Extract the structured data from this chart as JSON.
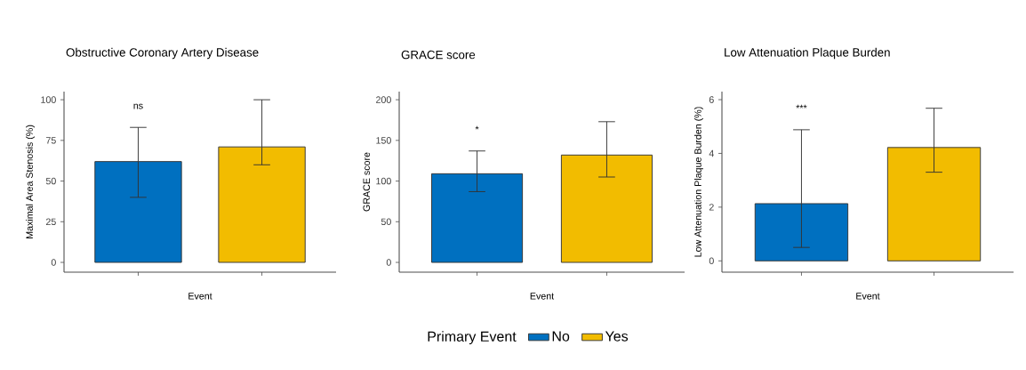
{
  "chart_data": [
    {
      "type": "bar",
      "title": "Obstructive Coronary Artery Disease",
      "xlabel": "Event",
      "ylabel": "Maximal Area Stenosis (%)",
      "categories": [
        null,
        null
      ],
      "series": [
        {
          "color": "#0070c0",
          "values": [
            62,
            null
          ],
          "errors": [
            [
              40,
              83
            ],
            null
          ]
        },
        {
          "color": "#f2bc00",
          "values": [
            null,
            71
          ],
          "errors": [
            null,
            [
              60,
              100
            ]
          ]
        }
      ],
      "ylim": [
        -6,
        105
      ],
      "yticks": [
        0,
        25,
        50,
        75,
        100
      ],
      "annotations": [
        "ns"
      ]
    },
    {
      "type": "bar",
      "title": "GRACE score",
      "xlabel": "Event",
      "ylabel": "GRACE score",
      "categories": [
        null,
        null
      ],
      "series": [
        {
          "name": "No",
          "color": "#0070c0",
          "values": [
            109,
            null
          ],
          "errors": [
            [
              87,
              137
            ],
            null
          ]
        },
        {
          "name": "Yes",
          "color": "#f2bc00",
          "values": [
            null,
            132
          ],
          "errors": [
            null,
            [
              105,
              173
            ]
          ]
        }
      ],
      "ylim": [
        -12,
        210
      ],
      "yticks": [
        0,
        50,
        100,
        150,
        200
      ],
      "annotations": [
        "*"
      ],
      "legend": "bottom",
      "legend_title": "Primary Event"
    },
    {
      "type": "bar",
      "title": "Low Attenuation Plaque Burden",
      "xlabel": "Event",
      "ylabel": "Low Attenuation Plaque Burden (%)",
      "categories": [
        null,
        null
      ],
      "series": [
        {
          "color": "#0070c0",
          "values": [
            2.13,
            null
          ],
          "errors": [
            [
              0.5,
              4.88
            ],
            null
          ]
        },
        {
          "color": "#f2bc00",
          "values": [
            null,
            4.22
          ],
          "errors": [
            null,
            [
              3.3,
              5.68
            ]
          ]
        }
      ],
      "ylim": [
        -0.42,
        6.3
      ],
      "yticks": [
        0,
        2,
        4,
        6
      ],
      "annotations": [
        "***"
      ]
    }
  ]
}
